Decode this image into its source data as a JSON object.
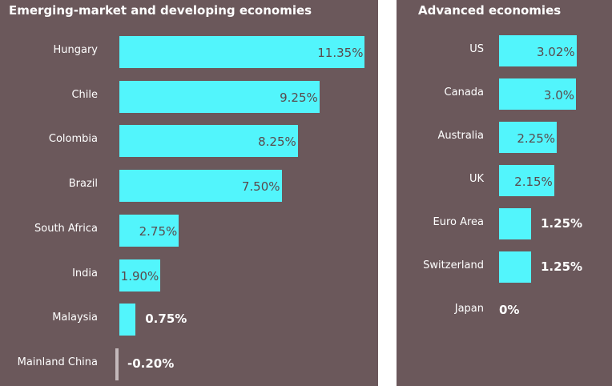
{
  "chart_data": [
    {
      "type": "bar",
      "orientation": "horizontal",
      "title": "Emerging-market and developing economies",
      "categories": [
        "Hungary",
        "Chile",
        "Colombia",
        "Brazil",
        "South Africa",
        "India",
        "Malaysia",
        "Mainland China"
      ],
      "values": [
        11.35,
        9.25,
        8.25,
        7.5,
        2.75,
        1.9,
        0.75,
        -0.2
      ],
      "labels": [
        "11.35%",
        "9.25%",
        "8.25%",
        "7.50%",
        "2.75%",
        "1.90%",
        "0.75%",
        "-0.20%"
      ],
      "grid": false,
      "colors": {
        "positive": "#52f5fc",
        "negative": "#c4b9bb",
        "background": "#6b585b"
      }
    },
    {
      "type": "bar",
      "orientation": "horizontal",
      "title": "Advanced economies",
      "categories": [
        "US",
        "Canada",
        "Australia",
        "UK",
        "Euro Area",
        "Switzerland",
        "Japan"
      ],
      "values": [
        3.02,
        3.0,
        2.25,
        2.15,
        1.25,
        1.25,
        0
      ],
      "labels": [
        "3.02%",
        "3.0%",
        "2.25%",
        "2.15%",
        "1.25%",
        "1.25%",
        "0%"
      ],
      "grid": false,
      "colors": {
        "positive": "#52f5fc",
        "negative": "#c4b9bb",
        "background": "#6b585b"
      }
    }
  ]
}
